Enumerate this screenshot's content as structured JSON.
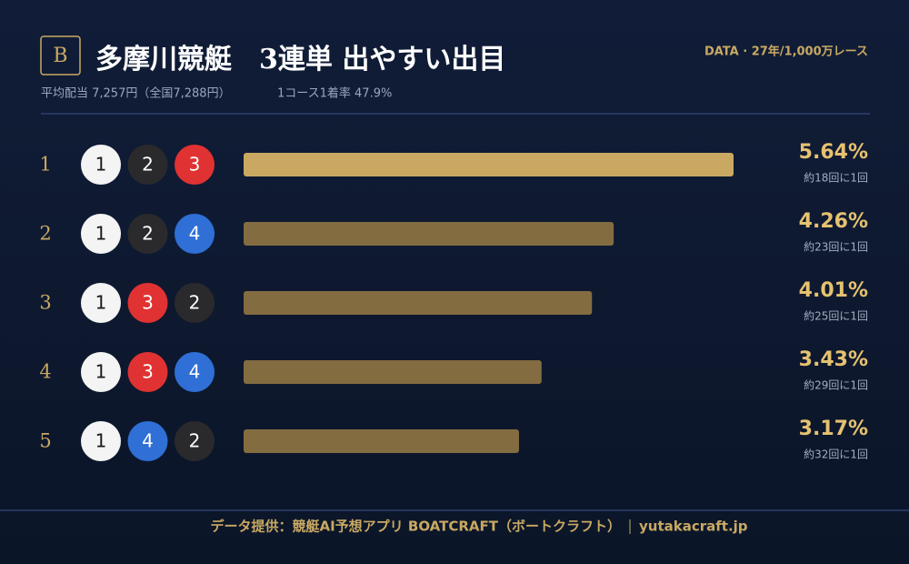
{
  "header": {
    "badge": "B",
    "title": "多摩川競艇　3連単 出やすい出目",
    "payout": "平均配当 7,257円（全国7,288円）",
    "first_rate": "1コース1着率 47.9%",
    "source_note": "DATA · 27年/1,000万レース"
  },
  "chart_data": {
    "type": "bar",
    "orientation": "horizontal",
    "categories": [
      "1",
      "2",
      "3",
      "4",
      "5"
    ],
    "combinations": [
      [
        1,
        2,
        3
      ],
      [
        1,
        2,
        4
      ],
      [
        1,
        3,
        2
      ],
      [
        1,
        3,
        4
      ],
      [
        1,
        4,
        2
      ]
    ],
    "values": [
      5.64,
      4.26,
      4.01,
      3.43,
      3.17
    ],
    "value_labels": [
      "5.64%",
      "4.26%",
      "4.01%",
      "3.43%",
      "3.17%"
    ],
    "frequency_labels": [
      "約18回に1回",
      "約23回に1回",
      "約25回に1回",
      "約29回に1回",
      "約32回に1回"
    ],
    "bar_colors": [
      "#c9a962",
      "#846c41",
      "#846c41",
      "#846c41",
      "#846c41"
    ],
    "boat_colors": {
      "1": "#f4f4f4",
      "2": "#2a2a2c",
      "3": "#e03232",
      "4": "#2f6fd6"
    },
    "boat_text_colors": {
      "1": "#1a1a1a",
      "2": "#ffffff",
      "3": "#ffffff",
      "4": "#ffffff"
    }
  },
  "footer": {
    "credit": "データ提供：競艇AI予想アプリ BOATCRAFT（ボートクラフト）",
    "site": "yutakacraft.jp"
  }
}
